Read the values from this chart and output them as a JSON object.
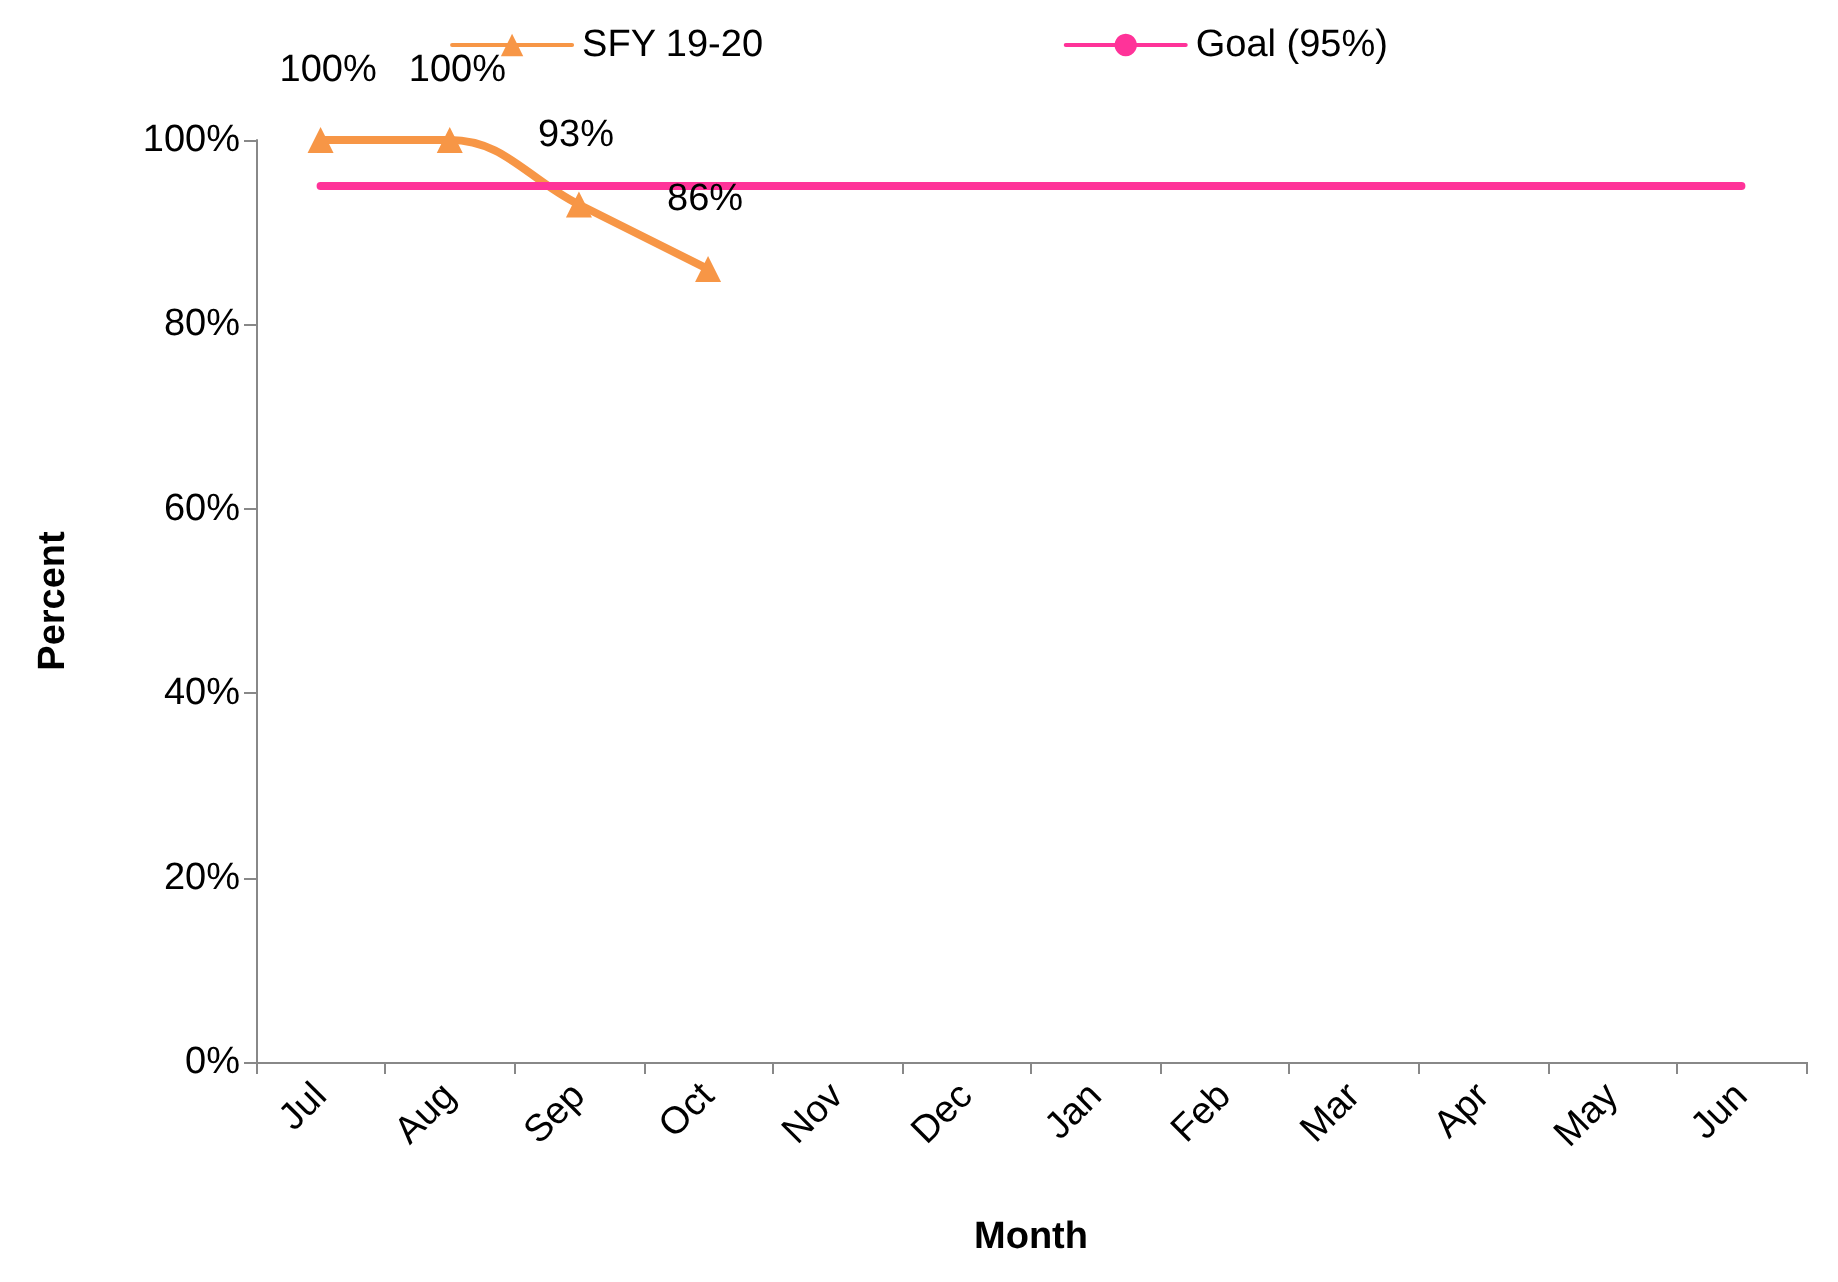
{
  "chart_data": {
    "type": "line",
    "xlabel": "Month",
    "ylabel": "Percent",
    "categories": [
      "Jul",
      "Aug",
      "Sep",
      "Oct",
      "Nov",
      "Dec",
      "Jan",
      "Feb",
      "Mar",
      "Apr",
      "May",
      "Jun"
    ],
    "series": [
      {
        "name": "SFY 19-20",
        "color": "#f79646",
        "marker": "triangle",
        "values": [
          100,
          100,
          93,
          86,
          null,
          null,
          null,
          null,
          null,
          null,
          null,
          null
        ],
        "value_labels": [
          "100%",
          "100%",
          "93%",
          "86%",
          null,
          null,
          null,
          null,
          null,
          null,
          null,
          null
        ]
      },
      {
        "name": "Goal (95%)",
        "color": "#ff3399",
        "marker": "none",
        "values": [
          95,
          95,
          95,
          95,
          95,
          95,
          95,
          95,
          95,
          95,
          95,
          95
        ]
      }
    ],
    "ylim": [
      0,
      100
    ],
    "yticks": [
      {
        "value": 0,
        "label": "0%"
      },
      {
        "value": 20,
        "label": "20%"
      },
      {
        "value": 40,
        "label": "40%"
      },
      {
        "value": 60,
        "label": "60%"
      },
      {
        "value": 80,
        "label": "80%"
      },
      {
        "value": 100,
        "label": "100%"
      }
    ],
    "legend": "top",
    "grid": false
  }
}
